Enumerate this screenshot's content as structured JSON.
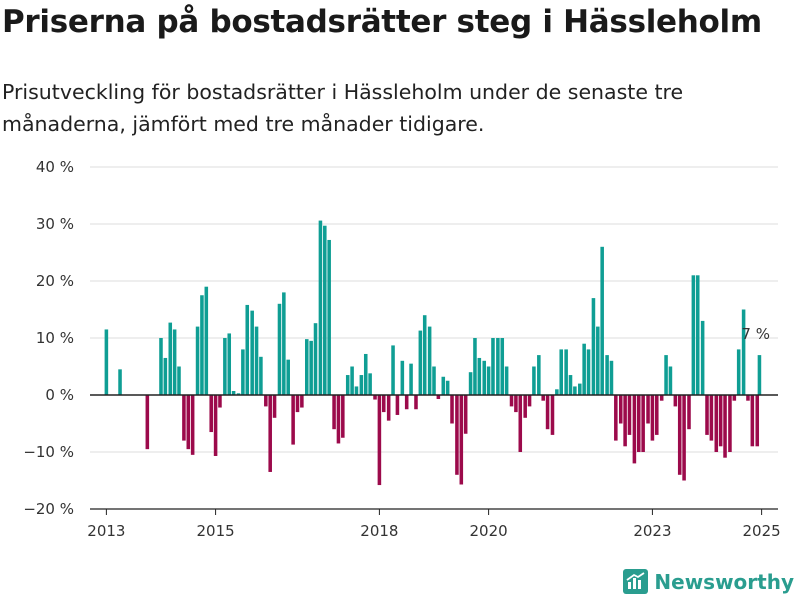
{
  "title": "Priserna på bostadsrätter steg i Hässleholm",
  "subtitle": "Prisutveckling för bostadsrätter i Hässleholm under de senaste tre månaderna, jämfört med tre månader tidigare.",
  "brand": {
    "name": "Newsworthy",
    "icon": "newsworthy-logo-icon"
  },
  "colors": {
    "positive": "#0f9e94",
    "negative": "#9c0a4b",
    "axis": "#222222",
    "grid": "#dddddd"
  },
  "chart_data": {
    "type": "bar",
    "title": "",
    "xlabel": "",
    "ylabel": "",
    "ylim": [
      -20,
      40
    ],
    "grid": true,
    "y_ticks": [
      -20,
      -10,
      0,
      10,
      20,
      30,
      40
    ],
    "y_tick_labels": [
      "−20 %",
      "−10 %",
      "0 %",
      "10 %",
      "20 %",
      "30 %",
      "40 %"
    ],
    "x_ticks": [
      2013,
      2015,
      2018,
      2020,
      2023,
      2025
    ],
    "x_tick_labels": [
      "2013",
      "2015",
      "2018",
      "2020",
      "2023",
      "2025"
    ],
    "x_unit": "year",
    "annotation": {
      "text": "7 %",
      "x": 2024.96,
      "y": 7
    },
    "points": [
      [
        2013.0,
        11.5
      ],
      [
        2013.25,
        4.5
      ],
      [
        2013.75,
        -9.5
      ],
      [
        2014.0,
        10.0
      ],
      [
        2014.08,
        6.5
      ],
      [
        2014.17,
        12.7
      ],
      [
        2014.25,
        11.5
      ],
      [
        2014.33,
        5.0
      ],
      [
        2014.42,
        -8.0
      ],
      [
        2014.5,
        -9.5
      ],
      [
        2014.58,
        -10.5
      ],
      [
        2014.67,
        12.0
      ],
      [
        2014.75,
        17.5
      ],
      [
        2014.83,
        19.0
      ],
      [
        2014.92,
        -6.5
      ],
      [
        2015.0,
        -10.7
      ],
      [
        2015.08,
        -2.2
      ],
      [
        2015.17,
        10.0
      ],
      [
        2015.25,
        10.8
      ],
      [
        2015.33,
        0.7
      ],
      [
        2015.42,
        0.3
      ],
      [
        2015.5,
        8.0
      ],
      [
        2015.58,
        15.8
      ],
      [
        2015.67,
        14.8
      ],
      [
        2015.75,
        12.0
      ],
      [
        2015.83,
        6.7
      ],
      [
        2015.92,
        -2.0
      ],
      [
        2016.0,
        -13.5
      ],
      [
        2016.08,
        -4.0
      ],
      [
        2016.17,
        16.0
      ],
      [
        2016.25,
        18.0
      ],
      [
        2016.33,
        6.2
      ],
      [
        2016.42,
        -8.7
      ],
      [
        2016.5,
        -3.0
      ],
      [
        2016.58,
        -2.2
      ],
      [
        2016.67,
        9.8
      ],
      [
        2016.75,
        9.5
      ],
      [
        2016.83,
        12.6
      ],
      [
        2016.92,
        30.6
      ],
      [
        2017.0,
        29.7
      ],
      [
        2017.08,
        27.2
      ],
      [
        2017.17,
        -6.0
      ],
      [
        2017.25,
        -8.5
      ],
      [
        2017.33,
        -7.5
      ],
      [
        2017.42,
        3.5
      ],
      [
        2017.5,
        5.0
      ],
      [
        2017.58,
        1.5
      ],
      [
        2017.67,
        3.5
      ],
      [
        2017.75,
        7.2
      ],
      [
        2017.83,
        3.8
      ],
      [
        2017.92,
        -0.8
      ],
      [
        2018.0,
        -15.8
      ],
      [
        2018.08,
        -3.0
      ],
      [
        2018.17,
        -4.5
      ],
      [
        2018.25,
        8.7
      ],
      [
        2018.33,
        -3.5
      ],
      [
        2018.42,
        6.0
      ],
      [
        2018.5,
        -2.5
      ],
      [
        2018.58,
        5.5
      ],
      [
        2018.67,
        -2.5
      ],
      [
        2018.75,
        11.3
      ],
      [
        2018.83,
        14.0
      ],
      [
        2018.92,
        12.0
      ],
      [
        2019.0,
        5.0
      ],
      [
        2019.08,
        -0.7
      ],
      [
        2019.17,
        3.2
      ],
      [
        2019.25,
        2.5
      ],
      [
        2019.33,
        -5.0
      ],
      [
        2019.42,
        -14.0
      ],
      [
        2019.5,
        -15.7
      ],
      [
        2019.58,
        -6.8
      ],
      [
        2019.67,
        4.0
      ],
      [
        2019.75,
        10.0
      ],
      [
        2019.83,
        6.5
      ],
      [
        2019.92,
        6.0
      ],
      [
        2020.0,
        5.0
      ],
      [
        2020.08,
        10.0
      ],
      [
        2020.17,
        10.0
      ],
      [
        2020.25,
        10.0
      ],
      [
        2020.33,
        5.0
      ],
      [
        2020.42,
        -2.0
      ],
      [
        2020.5,
        -3.0
      ],
      [
        2020.58,
        -10.0
      ],
      [
        2020.67,
        -4.0
      ],
      [
        2020.75,
        -2.0
      ],
      [
        2020.83,
        5.0
      ],
      [
        2020.92,
        7.0
      ],
      [
        2021.0,
        -1.0
      ],
      [
        2021.08,
        -6.0
      ],
      [
        2021.17,
        -7.0
      ],
      [
        2021.25,
        1.0
      ],
      [
        2021.33,
        8.0
      ],
      [
        2021.42,
        8.0
      ],
      [
        2021.5,
        3.5
      ],
      [
        2021.58,
        1.5
      ],
      [
        2021.67,
        2.0
      ],
      [
        2021.75,
        9.0
      ],
      [
        2021.83,
        8.0
      ],
      [
        2021.92,
        17.0
      ],
      [
        2022.0,
        12.0
      ],
      [
        2022.08,
        26.0
      ],
      [
        2022.17,
        7.0
      ],
      [
        2022.25,
        6.0
      ],
      [
        2022.33,
        -8.0
      ],
      [
        2022.42,
        -5.0
      ],
      [
        2022.5,
        -9.0
      ],
      [
        2022.58,
        -7.0
      ],
      [
        2022.67,
        -12.0
      ],
      [
        2022.75,
        -10.0
      ],
      [
        2022.83,
        -10.0
      ],
      [
        2022.92,
        -5.0
      ],
      [
        2023.0,
        -8.0
      ],
      [
        2023.08,
        -7.0
      ],
      [
        2023.17,
        -1.0
      ],
      [
        2023.25,
        7.0
      ],
      [
        2023.33,
        5.0
      ],
      [
        2023.42,
        -2.0
      ],
      [
        2023.5,
        -14.0
      ],
      [
        2023.58,
        -15.0
      ],
      [
        2023.67,
        -6.0
      ],
      [
        2023.75,
        21.0
      ],
      [
        2023.83,
        21.0
      ],
      [
        2023.92,
        13.0
      ],
      [
        2024.0,
        -7.0
      ],
      [
        2024.08,
        -8.0
      ],
      [
        2024.17,
        -10.0
      ],
      [
        2024.25,
        -9.0
      ],
      [
        2024.33,
        -11.0
      ],
      [
        2024.42,
        -10.0
      ],
      [
        2024.5,
        -1.0
      ],
      [
        2024.58,
        8.0
      ],
      [
        2024.67,
        15.0
      ],
      [
        2024.75,
        -1.0
      ],
      [
        2024.83,
        -9.0
      ],
      [
        2024.92,
        -9.0
      ],
      [
        2024.96,
        7.0
      ]
    ]
  }
}
